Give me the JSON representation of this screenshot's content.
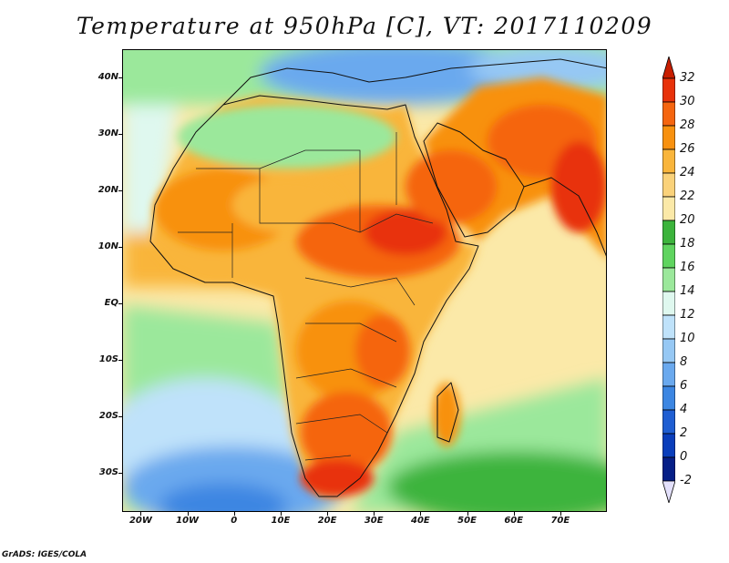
{
  "title": "Temperature at 950hPa [C], VT: 2017110209",
  "credit": "GrADS: IGES/COLA",
  "map": {
    "lon_range": [
      -24,
      80
    ],
    "lat_range": [
      -37,
      45
    ],
    "y_ticks": [
      {
        "label": "40N",
        "lat": 40
      },
      {
        "label": "30N",
        "lat": 30
      },
      {
        "label": "20N",
        "lat": 20
      },
      {
        "label": "10N",
        "lat": 10
      },
      {
        "label": "EQ",
        "lat": 0
      },
      {
        "label": "10S",
        "lat": -10
      },
      {
        "label": "20S",
        "lat": -20
      },
      {
        "label": "30S",
        "lat": -30
      }
    ],
    "x_ticks": [
      {
        "label": "20W",
        "lon": -20
      },
      {
        "label": "10W",
        "lon": -10
      },
      {
        "label": "0",
        "lon": 0
      },
      {
        "label": "10E",
        "lon": 10
      },
      {
        "label": "20E",
        "lon": 20
      },
      {
        "label": "30E",
        "lon": 30
      },
      {
        "label": "40E",
        "lon": 40
      },
      {
        "label": "50E",
        "lon": 50
      },
      {
        "label": "60E",
        "lon": 60
      },
      {
        "label": "70E",
        "lon": 70
      }
    ]
  },
  "colorbar": {
    "labels": [
      "32",
      "30",
      "28",
      "26",
      "24",
      "22",
      "20",
      "18",
      "16",
      "14",
      "12",
      "10",
      "8",
      "6",
      "4",
      "2",
      "0",
      "-2"
    ],
    "colors": [
      "#e8320a",
      "#f5650f",
      "#f8910f",
      "#f9b53b",
      "#fad27a",
      "#fbe9a8",
      "#3cb43c",
      "#5fd45f",
      "#9be89b",
      "#dff8ef",
      "#bfe2fa",
      "#96c8f4",
      "#6aa9ee",
      "#3c86e2",
      "#1f5ed2",
      "#0a3ebb",
      "#061f87"
    ],
    "top_arrow_color": "#c81e00",
    "bottom_arrow_color": "#e3e0fb"
  }
}
